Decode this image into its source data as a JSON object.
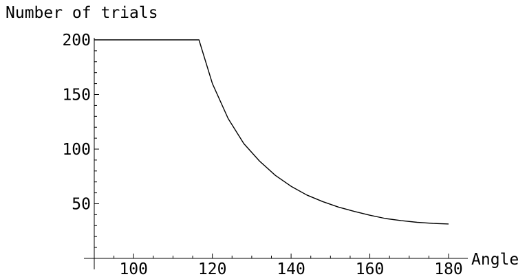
{
  "chart_data": {
    "type": "line",
    "title": "",
    "xlabel": "Angle",
    "ylabel": "Number of trials",
    "xlim": [
      90,
      180
    ],
    "ylim": [
      0,
      200
    ],
    "x_ticks": [
      100,
      120,
      140,
      160,
      180
    ],
    "y_ticks": [
      50,
      100,
      150,
      200
    ],
    "grid": false,
    "series": [
      {
        "x": [
          90,
          100,
          110,
          116.6,
          120,
          124,
          128,
          132,
          136,
          140,
          144,
          148,
          152,
          156,
          160,
          164,
          168,
          172,
          176,
          180
        ],
        "y": [
          200,
          200,
          200,
          200,
          160,
          128,
          105,
          89,
          76,
          66,
          58,
          52,
          47,
          43,
          39.5,
          36.5,
          34.5,
          33,
          32,
          31.5
        ]
      }
    ]
  }
}
